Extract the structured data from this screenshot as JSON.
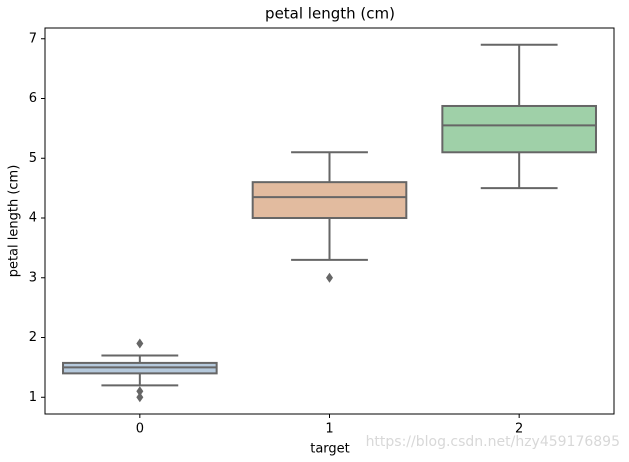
{
  "chart_data": {
    "type": "box",
    "title": "petal length (cm)",
    "x_label": "target",
    "y_label": "petal length (cm)",
    "categories": [
      "0",
      "1",
      "2"
    ],
    "boxes": [
      {
        "whisker_low": 1.2,
        "q1": 1.4,
        "median": 1.5,
        "q3": 1.575,
        "whisker_high": 1.7,
        "outliers": [
          1.0,
          1.1,
          1.9
        ],
        "color": "#b5c9dc"
      },
      {
        "whisker_low": 3.3,
        "q1": 4.0,
        "median": 4.35,
        "q3": 4.6,
        "whisker_high": 5.1,
        "outliers": [
          3.0
        ],
        "color": "#e2bb9f"
      },
      {
        "whisker_low": 4.5,
        "q1": 5.1,
        "median": 5.55,
        "q3": 5.875,
        "whisker_high": 6.9,
        "outliers": [],
        "color": "#9fd0a8"
      }
    ],
    "ylim": [
      0.72,
      7.18
    ],
    "yticks": [
      1,
      2,
      3,
      4,
      5,
      6,
      7
    ],
    "watermark": "https://blog.csdn.net/hzy459176895"
  }
}
